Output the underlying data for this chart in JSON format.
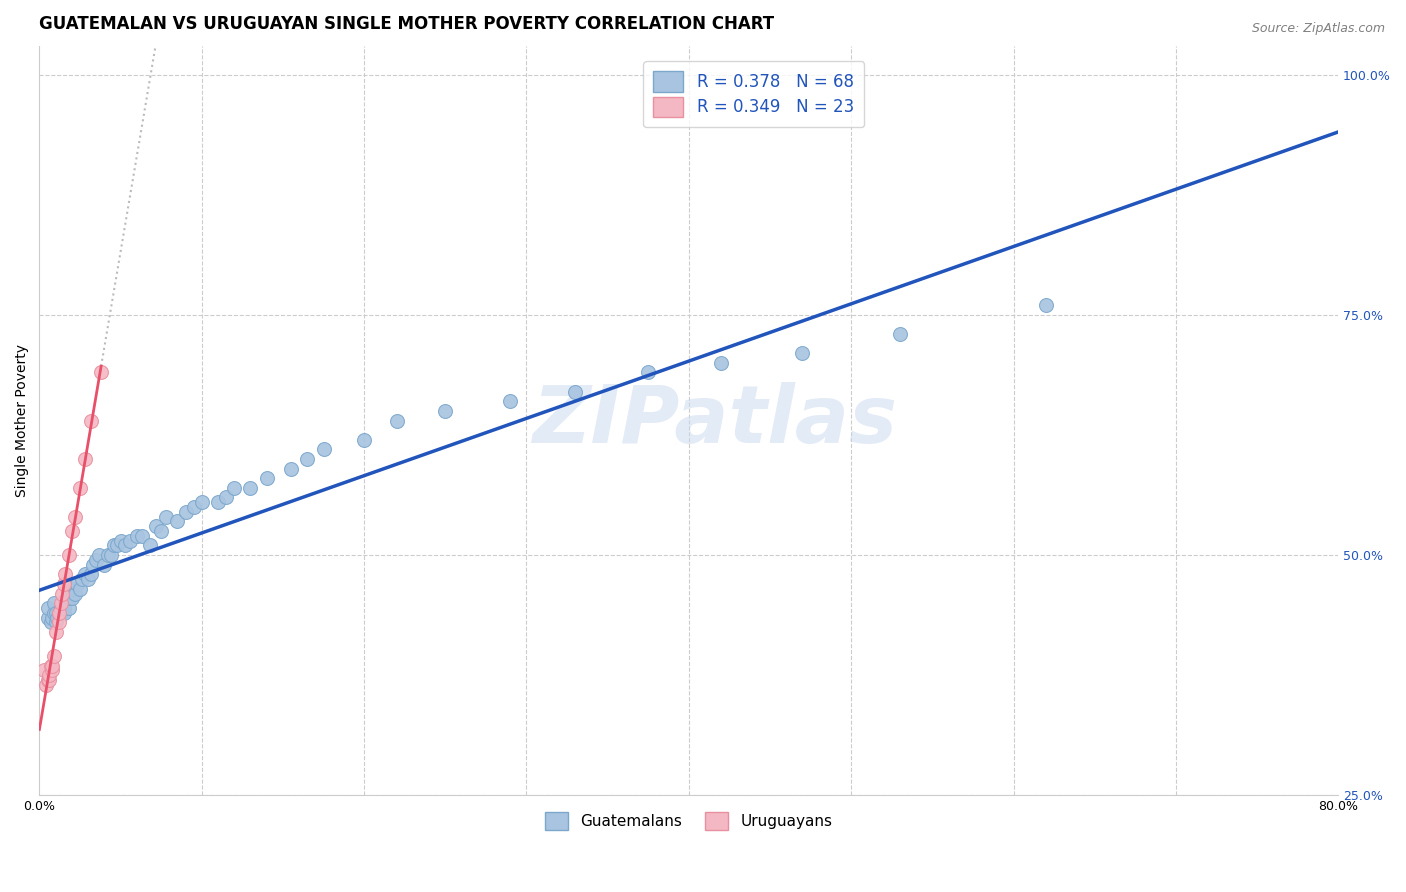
{
  "title": "GUATEMALAN VS URUGUAYAN SINGLE MOTHER POVERTY CORRELATION CHART",
  "source": "Source: ZipAtlas.com",
  "xlabel": "",
  "ylabel": "Single Mother Poverty",
  "xlim": [
    0.0,
    0.8
  ],
  "ylim": [
    0.33,
    1.03
  ],
  "xticks": [
    0.0,
    0.1,
    0.2,
    0.3,
    0.4,
    0.5,
    0.6,
    0.7,
    0.8
  ],
  "xticklabels": [
    "0.0%",
    "",
    "",
    "",
    "",
    "",
    "",
    "",
    "80.0%"
  ],
  "yticks": [
    0.375,
    0.5,
    0.625,
    0.75,
    0.875,
    1.0
  ],
  "ytick_display": [
    0.25,
    0.5,
    0.75,
    1.0
  ],
  "yticklabels_right": [
    "25.0%",
    "50.0%",
    "75.0%",
    "100.0%"
  ],
  "R_guatemalan": 0.378,
  "N_guatemalan": 68,
  "R_uruguayan": 0.349,
  "N_uruguayan": 23,
  "guatemalan_color": "#A8C4E0",
  "guatemalan_edge_color": "#7BA7CC",
  "uruguayan_color": "#F4B8C4",
  "uruguayan_edge_color": "#E8909F",
  "trendline_guatemalan_color": "#2255BB",
  "trendline_uruguayan_color": "#E8506A",
  "trendline_ext_color": "#CCCCCC",
  "background_color": "#FFFFFF",
  "grid_color": "#CCCCCC",
  "legend_guatemalan": "Guatemalans",
  "legend_uruguayan": "Uruguayans",
  "guatemalan_x": [
    0.005,
    0.005,
    0.007,
    0.008,
    0.009,
    0.009,
    0.01,
    0.01,
    0.011,
    0.012,
    0.013,
    0.013,
    0.014,
    0.015,
    0.015,
    0.016,
    0.017,
    0.018,
    0.018,
    0.019,
    0.02,
    0.02,
    0.022,
    0.023,
    0.025,
    0.026,
    0.028,
    0.03,
    0.032,
    0.033,
    0.035,
    0.037,
    0.04,
    0.042,
    0.044,
    0.046,
    0.048,
    0.05,
    0.053,
    0.056,
    0.06,
    0.063,
    0.068,
    0.072,
    0.075,
    0.078,
    0.085,
    0.09,
    0.095,
    0.1,
    0.11,
    0.115,
    0.12,
    0.13,
    0.14,
    0.155,
    0.165,
    0.175,
    0.2,
    0.22,
    0.25,
    0.29,
    0.33,
    0.375,
    0.42,
    0.47,
    0.53,
    0.62
  ],
  "guatemalan_y": [
    0.435,
    0.445,
    0.43,
    0.435,
    0.44,
    0.45,
    0.43,
    0.44,
    0.435,
    0.44,
    0.44,
    0.445,
    0.45,
    0.44,
    0.445,
    0.45,
    0.455,
    0.445,
    0.455,
    0.46,
    0.455,
    0.465,
    0.46,
    0.47,
    0.465,
    0.475,
    0.48,
    0.475,
    0.48,
    0.49,
    0.495,
    0.5,
    0.49,
    0.5,
    0.5,
    0.51,
    0.51,
    0.515,
    0.51,
    0.515,
    0.52,
    0.52,
    0.51,
    0.53,
    0.525,
    0.54,
    0.535,
    0.545,
    0.55,
    0.555,
    0.555,
    0.56,
    0.57,
    0.57,
    0.58,
    0.59,
    0.6,
    0.61,
    0.62,
    0.64,
    0.65,
    0.66,
    0.67,
    0.69,
    0.7,
    0.71,
    0.73,
    0.76
  ],
  "uruguayan_x": [
    0.003,
    0.004,
    0.005,
    0.006,
    0.006,
    0.007,
    0.008,
    0.008,
    0.009,
    0.01,
    0.012,
    0.012,
    0.013,
    0.014,
    0.015,
    0.016,
    0.018,
    0.02,
    0.022,
    0.025,
    0.028,
    0.032,
    0.038
  ],
  "uruguayan_y": [
    0.38,
    0.365,
    0.37,
    0.37,
    0.375,
    0.385,
    0.38,
    0.385,
    0.395,
    0.42,
    0.43,
    0.44,
    0.45,
    0.46,
    0.47,
    0.48,
    0.5,
    0.525,
    0.54,
    0.57,
    0.6,
    0.64,
    0.69
  ],
  "watermark": "ZIPatlas",
  "title_fontsize": 12,
  "label_fontsize": 10,
  "tick_fontsize": 9,
  "legend_fontsize": 11,
  "marker_size": 100
}
